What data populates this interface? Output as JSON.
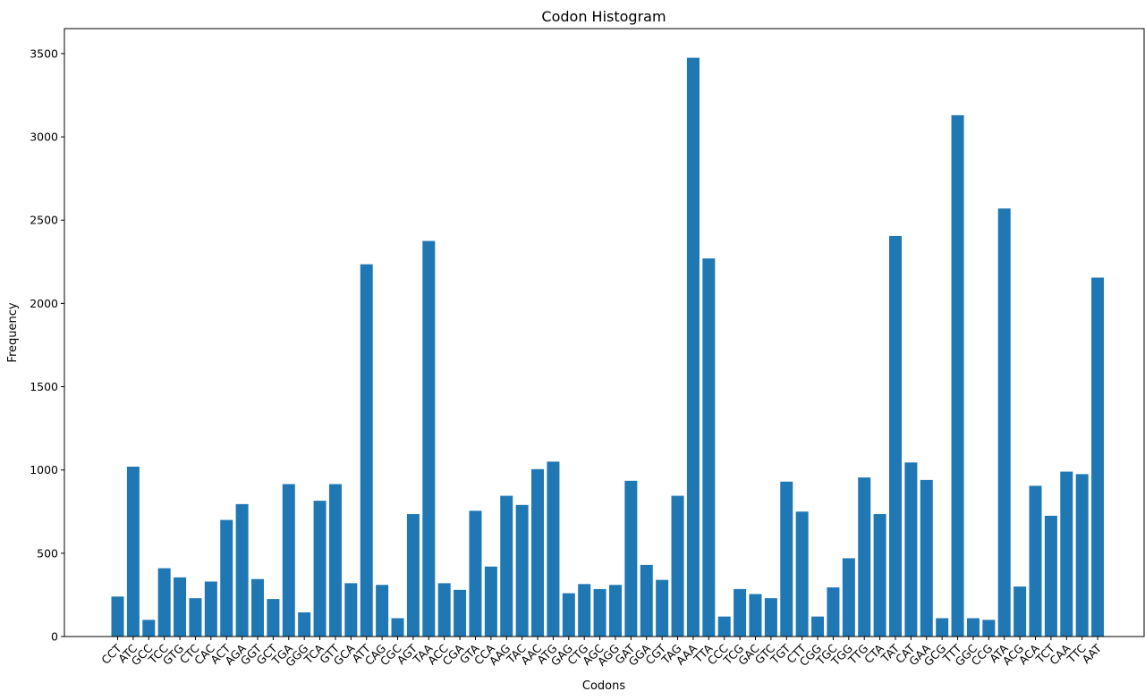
{
  "chart_data": {
    "type": "bar",
    "title": "Codon Histogram",
    "xlabel": "Codons",
    "ylabel": "Frequency",
    "ylim": [
      0,
      3650
    ],
    "yticks": [
      0,
      500,
      1000,
      1500,
      2000,
      2500,
      3000,
      3500
    ],
    "bar_color": "#1f77b4",
    "grid": false,
    "categories": [
      "CCT",
      "ATC",
      "GCC",
      "TCC",
      "GTG",
      "CTC",
      "CAC",
      "ACT",
      "AGA",
      "GGT",
      "GCT",
      "TGA",
      "GGG",
      "TCA",
      "GTT",
      "GCA",
      "ATT",
      "CAG",
      "CGC",
      "AGT",
      "TAA",
      "ACC",
      "CGA",
      "GTA",
      "CCA",
      "AAG",
      "TAC",
      "AAC",
      "ATG",
      "GAG",
      "CTG",
      "AGC",
      "AGG",
      "GAT",
      "GGA",
      "CGT",
      "TAG",
      "AAA",
      "TTA",
      "CCC",
      "TCG",
      "GAC",
      "GTC",
      "TGT",
      "CTT",
      "CGG",
      "TGC",
      "TGG",
      "TTG",
      "CTA",
      "TAT",
      "CAT",
      "GAA",
      "GCG",
      "TTT",
      "GGC",
      "CCG",
      "ATA",
      "ACG",
      "ACA",
      "TCT",
      "CAA",
      "TTC",
      "AAT"
    ],
    "values": [
      240,
      1020,
      100,
      410,
      355,
      230,
      330,
      700,
      795,
      345,
      225,
      915,
      145,
      815,
      915,
      320,
      2235,
      310,
      110,
      735,
      2375,
      320,
      280,
      755,
      420,
      845,
      790,
      1005,
      1050,
      260,
      315,
      285,
      310,
      935,
      430,
      340,
      845,
      3475,
      2270,
      120,
      285,
      255,
      230,
      930,
      750,
      120,
      295,
      470,
      955,
      735,
      2405,
      1045,
      940,
      110,
      3130,
      110,
      100,
      2570,
      300,
      905,
      725,
      990,
      975,
      2155
    ]
  }
}
